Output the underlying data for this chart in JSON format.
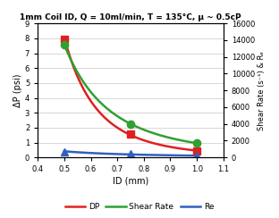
{
  "title": "1mm Coil ID, Q = 10ml/min, T = 135°C, μ ~ 0.5cP",
  "xlabel": "ID (mm)",
  "ylabel_left": "ΔP (psi)",
  "ylabel_right": "Shear Rate (s⁻¹) & Rₑ",
  "x_data": [
    0.5,
    0.75,
    1.0
  ],
  "dp_data": [
    7.95,
    1.55,
    0.45
  ],
  "shear_data": [
    13500,
    4000,
    1700
  ],
  "re_data": [
    700,
    400,
    200
  ],
  "dp_color": "#e02020",
  "shear_color": "#30a030",
  "re_color": "#3060c0",
  "xlim": [
    0.4,
    1.1
  ],
  "ylim_left": [
    0,
    9
  ],
  "ylim_right": [
    0,
    16000
  ],
  "yticks_left": [
    0,
    1,
    2,
    3,
    4,
    5,
    6,
    7,
    8,
    9
  ],
  "yticks_right": [
    0,
    2000,
    4000,
    6000,
    8000,
    10000,
    12000,
    14000,
    16000
  ],
  "xticks": [
    0.4,
    0.5,
    0.6,
    0.7,
    0.8,
    0.9,
    1.0,
    1.1
  ],
  "legend_labels": [
    "DP",
    "Shear Rate",
    "Re"
  ],
  "dp_marker": "s",
  "shear_marker": "o",
  "re_marker": "^",
  "marker_size": 6,
  "line_width": 1.8,
  "background_color": "#ffffff",
  "grid_color": "#c8c8c8"
}
